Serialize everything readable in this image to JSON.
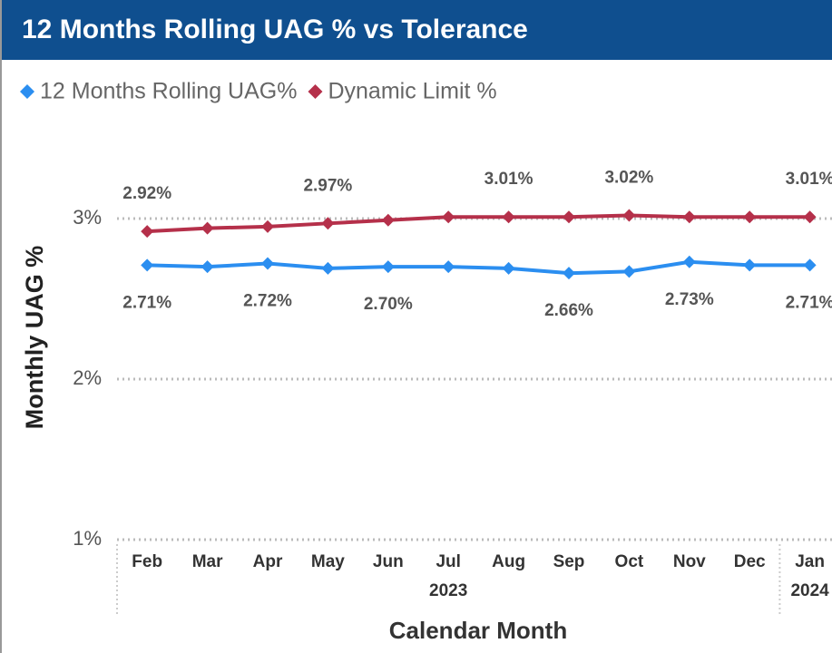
{
  "chart_data": {
    "type": "line",
    "title": "12 Months Rolling UAG % vs Tolerance",
    "x_label": "Calendar Month",
    "y_label": "Monthly UAG %",
    "categories": [
      "Feb",
      "Mar",
      "Apr",
      "May",
      "Jun",
      "Jul",
      "Aug",
      "Sep",
      "Oct",
      "Nov",
      "Dec",
      "Jan"
    ],
    "year_groups": [
      {
        "label": "2023",
        "count": 11
      },
      {
        "label": "2024",
        "count": 1
      }
    ],
    "series": [
      {
        "name": "12 Months Rolling UAG%",
        "color": "#2b8ef0",
        "values": [
          2.71,
          2.7,
          2.72,
          2.69,
          2.7,
          2.7,
          2.69,
          2.66,
          2.67,
          2.73,
          2.71,
          2.71
        ],
        "value_labels": [
          "2.71%",
          null,
          "2.72%",
          null,
          "2.70%",
          null,
          null,
          "2.66%",
          null,
          "2.73%",
          null,
          "2.71%"
        ]
      },
      {
        "name": "Dynamic Limit %",
        "color": "#b5304a",
        "values": [
          2.92,
          2.94,
          2.95,
          2.97,
          2.99,
          3.01,
          3.01,
          3.01,
          3.02,
          3.01,
          3.01,
          3.01
        ],
        "value_labels": [
          "2.92%",
          null,
          null,
          "2.97%",
          null,
          null,
          "3.01%",
          null,
          "3.02%",
          null,
          null,
          "3.01%"
        ]
      }
    ],
    "ylim": [
      1,
      3.6
    ],
    "yticks": [
      {
        "value": 1,
        "label": "1%"
      },
      {
        "value": 2,
        "label": "2%"
      },
      {
        "value": 3,
        "label": "3%"
      }
    ],
    "grid": true,
    "legend": "top-left"
  }
}
